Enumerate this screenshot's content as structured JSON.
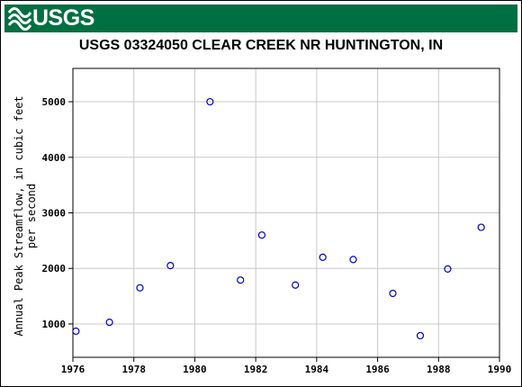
{
  "banner": {
    "logo_text": "USGS",
    "color": "#006f41"
  },
  "chart_data": {
    "type": "scatter",
    "title": "USGS 03324050 CLEAR CREEK NR HUNTINGTON, IN",
    "xlabel": "",
    "ylabel_lines": [
      "Annual Peak Streamflow, in cubic feet",
      "per second"
    ],
    "xlim": [
      1976,
      1990
    ],
    "ylim": [
      400,
      5600
    ],
    "x_ticks": [
      "1976",
      "1978",
      "1980",
      "1982",
      "1984",
      "1986",
      "1988",
      "1990"
    ],
    "y_ticks": [
      "1000",
      "2000",
      "3000",
      "4000",
      "5000"
    ],
    "grid": true,
    "marker": "open-circle",
    "marker_color": "#0000cc",
    "points": [
      {
        "x": 1976.1,
        "y": 870
      },
      {
        "x": 1977.2,
        "y": 1030
      },
      {
        "x": 1978.2,
        "y": 1650
      },
      {
        "x": 1979.2,
        "y": 2050
      },
      {
        "x": 1980.5,
        "y": 5000
      },
      {
        "x": 1981.5,
        "y": 1790
      },
      {
        "x": 1982.2,
        "y": 2600
      },
      {
        "x": 1983.3,
        "y": 1700
      },
      {
        "x": 1984.2,
        "y": 2200
      },
      {
        "x": 1985.2,
        "y": 2160
      },
      {
        "x": 1986.5,
        "y": 1550
      },
      {
        "x": 1987.4,
        "y": 790
      },
      {
        "x": 1988.3,
        "y": 1990
      },
      {
        "x": 1989.4,
        "y": 2740
      }
    ]
  }
}
